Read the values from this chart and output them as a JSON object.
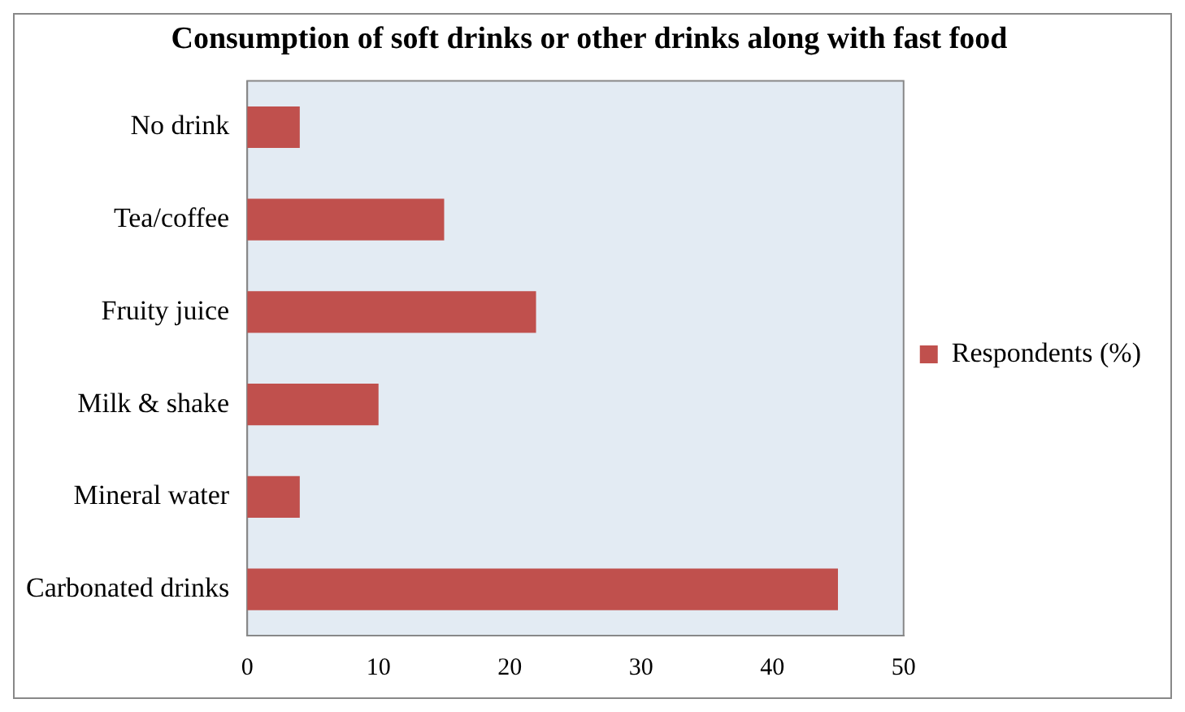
{
  "chart_data": {
    "type": "bar",
    "orientation": "horizontal",
    "title": "Consumption of soft drinks or other drinks along with fast food",
    "categories": [
      "No drink",
      "Tea/coffee",
      "Fruity juice",
      "Milk & shake",
      "Mineral water",
      "Carbonated drinks"
    ],
    "series": [
      {
        "name": "Respondents (%)",
        "color": "#c0504d",
        "values": [
          4,
          15,
          22,
          10,
          4,
          45
        ]
      }
    ],
    "xlim": [
      0,
      50
    ],
    "xticks": [
      0,
      10,
      20,
      30,
      40,
      50
    ],
    "grid": false,
    "legend": "right"
  }
}
